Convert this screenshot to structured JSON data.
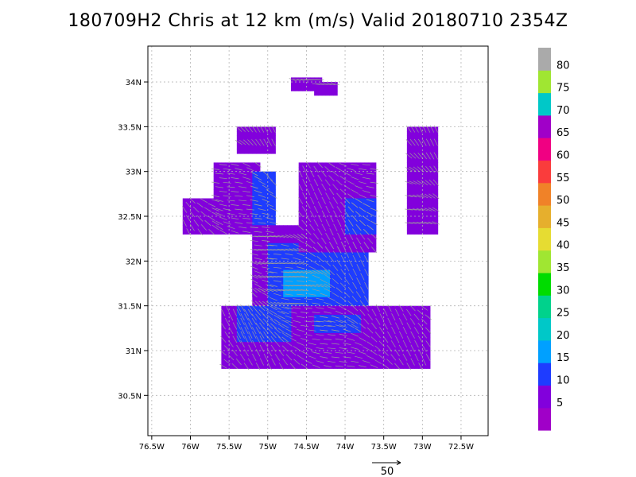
{
  "title": "180709H2 Chris at 12 km (m/s) Valid 20180710 2354Z",
  "chart_data": {
    "type": "heatmap",
    "storm": "Chris",
    "level": "12 km",
    "units": "m/s",
    "valid": "20180710 2354Z",
    "x_ticks": [
      {
        "lon": -76.5,
        "label": "76.5W"
      },
      {
        "lon": -76.0,
        "label": "76W"
      },
      {
        "lon": -75.5,
        "label": "75.5W"
      },
      {
        "lon": -75.0,
        "label": "75W"
      },
      {
        "lon": -74.5,
        "label": "74.5W"
      },
      {
        "lon": -74.0,
        "label": "74W"
      },
      {
        "lon": -73.5,
        "label": "73.5W"
      },
      {
        "lon": -73.0,
        "label": "73W"
      },
      {
        "lon": -72.5,
        "label": "72.5W"
      }
    ],
    "y_ticks": [
      {
        "lat": 30.5,
        "label": "30.5N"
      },
      {
        "lat": 31.0,
        "label": "31N"
      },
      {
        "lat": 31.5,
        "label": "31.5N"
      },
      {
        "lat": 32.0,
        "label": "32N"
      },
      {
        "lat": 32.5,
        "label": "32.5N"
      },
      {
        "lat": 33.0,
        "label": "33N"
      },
      {
        "lat": 33.5,
        "label": "33.5N"
      },
      {
        "lat": 34.0,
        "label": "34N"
      }
    ],
    "xlim": [
      -76.55,
      -72.15
    ],
    "ylim": [
      30.05,
      34.4
    ],
    "grid": true,
    "colorbar": {
      "bins": [
        {
          "label": "",
          "color": "#a000c8"
        },
        {
          "label": "5",
          "color": "#8200dc"
        },
        {
          "label": "10",
          "color": "#1e3cff"
        },
        {
          "label": "15",
          "color": "#00a0ff"
        },
        {
          "label": "20",
          "color": "#00c8c8"
        },
        {
          "label": "25",
          "color": "#00d28c"
        },
        {
          "label": "30",
          "color": "#00dc00"
        },
        {
          "label": "35",
          "color": "#a0e632"
        },
        {
          "label": "40",
          "color": "#e6dc32"
        },
        {
          "label": "45",
          "color": "#e6af2d"
        },
        {
          "label": "50",
          "color": "#f08228"
        },
        {
          "label": "55",
          "color": "#fa3c3c"
        },
        {
          "label": "60",
          "color": "#f00082"
        },
        {
          "label": "65",
          "color": "#a000c8"
        },
        {
          "label": "70",
          "color": "#00c8c8"
        },
        {
          "label": "75",
          "color": "#a0e632"
        },
        {
          "label": "80",
          "color": "#aaaaaa"
        }
      ]
    },
    "wind_field": {
      "cell_deg": 0.05,
      "regions": [
        {
          "value": 7,
          "lon": [
            -75.7,
            -75.1
          ],
          "lat": [
            32.3,
            33.1
          ]
        },
        {
          "value": 7,
          "lon": [
            -76.1,
            -75.6
          ],
          "lat": [
            32.3,
            32.7
          ]
        },
        {
          "value": 12,
          "lon": [
            -75.2,
            -74.9
          ],
          "lat": [
            31.6,
            33.0
          ]
        },
        {
          "value": 7,
          "lon": [
            -75.2,
            -74.5
          ],
          "lat": [
            31.5,
            32.4
          ]
        },
        {
          "value": 12,
          "lon": [
            -75.0,
            -73.7
          ],
          "lat": [
            31.5,
            32.2
          ]
        },
        {
          "value": 18,
          "lon": [
            -74.8,
            -74.2
          ],
          "lat": [
            31.6,
            31.9
          ]
        },
        {
          "value": 7,
          "lon": [
            -74.6,
            -73.6
          ],
          "lat": [
            32.1,
            33.1
          ]
        },
        {
          "value": 12,
          "lon": [
            -74.0,
            -73.6
          ],
          "lat": [
            32.3,
            32.7
          ]
        },
        {
          "value": 7,
          "lon": [
            -75.6,
            -72.9
          ],
          "lat": [
            30.8,
            31.5
          ]
        },
        {
          "value": 12,
          "lon": [
            -75.4,
            -74.7
          ],
          "lat": [
            31.1,
            31.5
          ]
        },
        {
          "value": 12,
          "lon": [
            -74.4,
            -73.8
          ],
          "lat": [
            31.2,
            31.4
          ]
        },
        {
          "value": 7,
          "lon": [
            -75.4,
            -74.9
          ],
          "lat": [
            33.2,
            33.5
          ]
        },
        {
          "value": 7,
          "lon": [
            -73.2,
            -72.8
          ],
          "lat": [
            32.3,
            33.5
          ]
        },
        {
          "value": 7,
          "lon": [
            -74.7,
            -74.3
          ],
          "lat": [
            33.9,
            34.05
          ]
        },
        {
          "value": 7,
          "lon": [
            -74.4,
            -74.1
          ],
          "lat": [
            33.85,
            34.0
          ]
        }
      ]
    },
    "reference_vector": {
      "value": 50,
      "label": "50"
    }
  }
}
